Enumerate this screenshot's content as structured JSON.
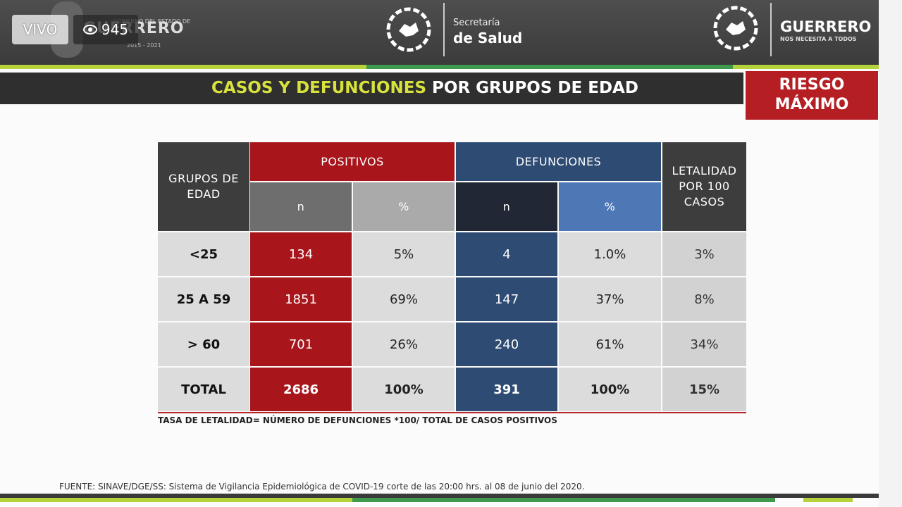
{
  "stream": {
    "live_label": "VIVO",
    "viewers": "945"
  },
  "header": {
    "gov_top": "GOBIERNO DEL ESTADO DE",
    "gov_name": "GUERRERO",
    "gov_years": "2015 - 2021",
    "secretaria": "Secretaría",
    "salud": "de Salud",
    "brand": "GUERRERO",
    "tagline": "NOS NECESITA A TODOS"
  },
  "title": {
    "highlight": "CASOS Y DEFUNCIONES",
    "rest": " POR GRUPOS DE EDAD"
  },
  "risk_badge": {
    "line1": "RIESGO",
    "line2": "MÁXIMO"
  },
  "table": {
    "col_group": "GRUPOS DE EDAD",
    "positivos": "POSITIVOS",
    "defunciones": "DEFUNCIONES",
    "letalidad": "LETALIDAD POR 100 CASOS",
    "sub_n": "n",
    "sub_pct": "%",
    "rows": [
      {
        "group": "<25",
        "pos_n": "134",
        "pos_pct": "5%",
        "def_n": "4",
        "def_pct": "1.0%",
        "let": "3%"
      },
      {
        "group": "25 A 59",
        "pos_n": "1851",
        "pos_pct": "69%",
        "def_n": "147",
        "def_pct": "37%",
        "let": "8%"
      },
      {
        "group": "> 60",
        "pos_n": "701",
        "pos_pct": "26%",
        "def_n": "240",
        "def_pct": "61%",
        "let": "34%"
      },
      {
        "group": "TOTAL",
        "pos_n": "2686",
        "pos_pct": "100%",
        "def_n": "391",
        "def_pct": "100%",
        "let": "15%"
      }
    ]
  },
  "note": "TASA DE LETALIDAD= NÚMERO DE DEFUNCIONES *100/ TOTAL DE CASOS POSITIVOS",
  "fuente": "FUENTE: SINAVE/DGE/SS: Sistema de Vigilancia Epidemiológica de COVID-19 corte de las 20:00 hrs. al 08 de junio del 2020.",
  "colors": {
    "red": "#a8161c",
    "blue_dark": "#2d4b73",
    "blue_light": "#4d78b5",
    "gray_dark": "#3d3d3d",
    "cell_gray": "#dcdcdc",
    "accent": "#d8e23c"
  }
}
